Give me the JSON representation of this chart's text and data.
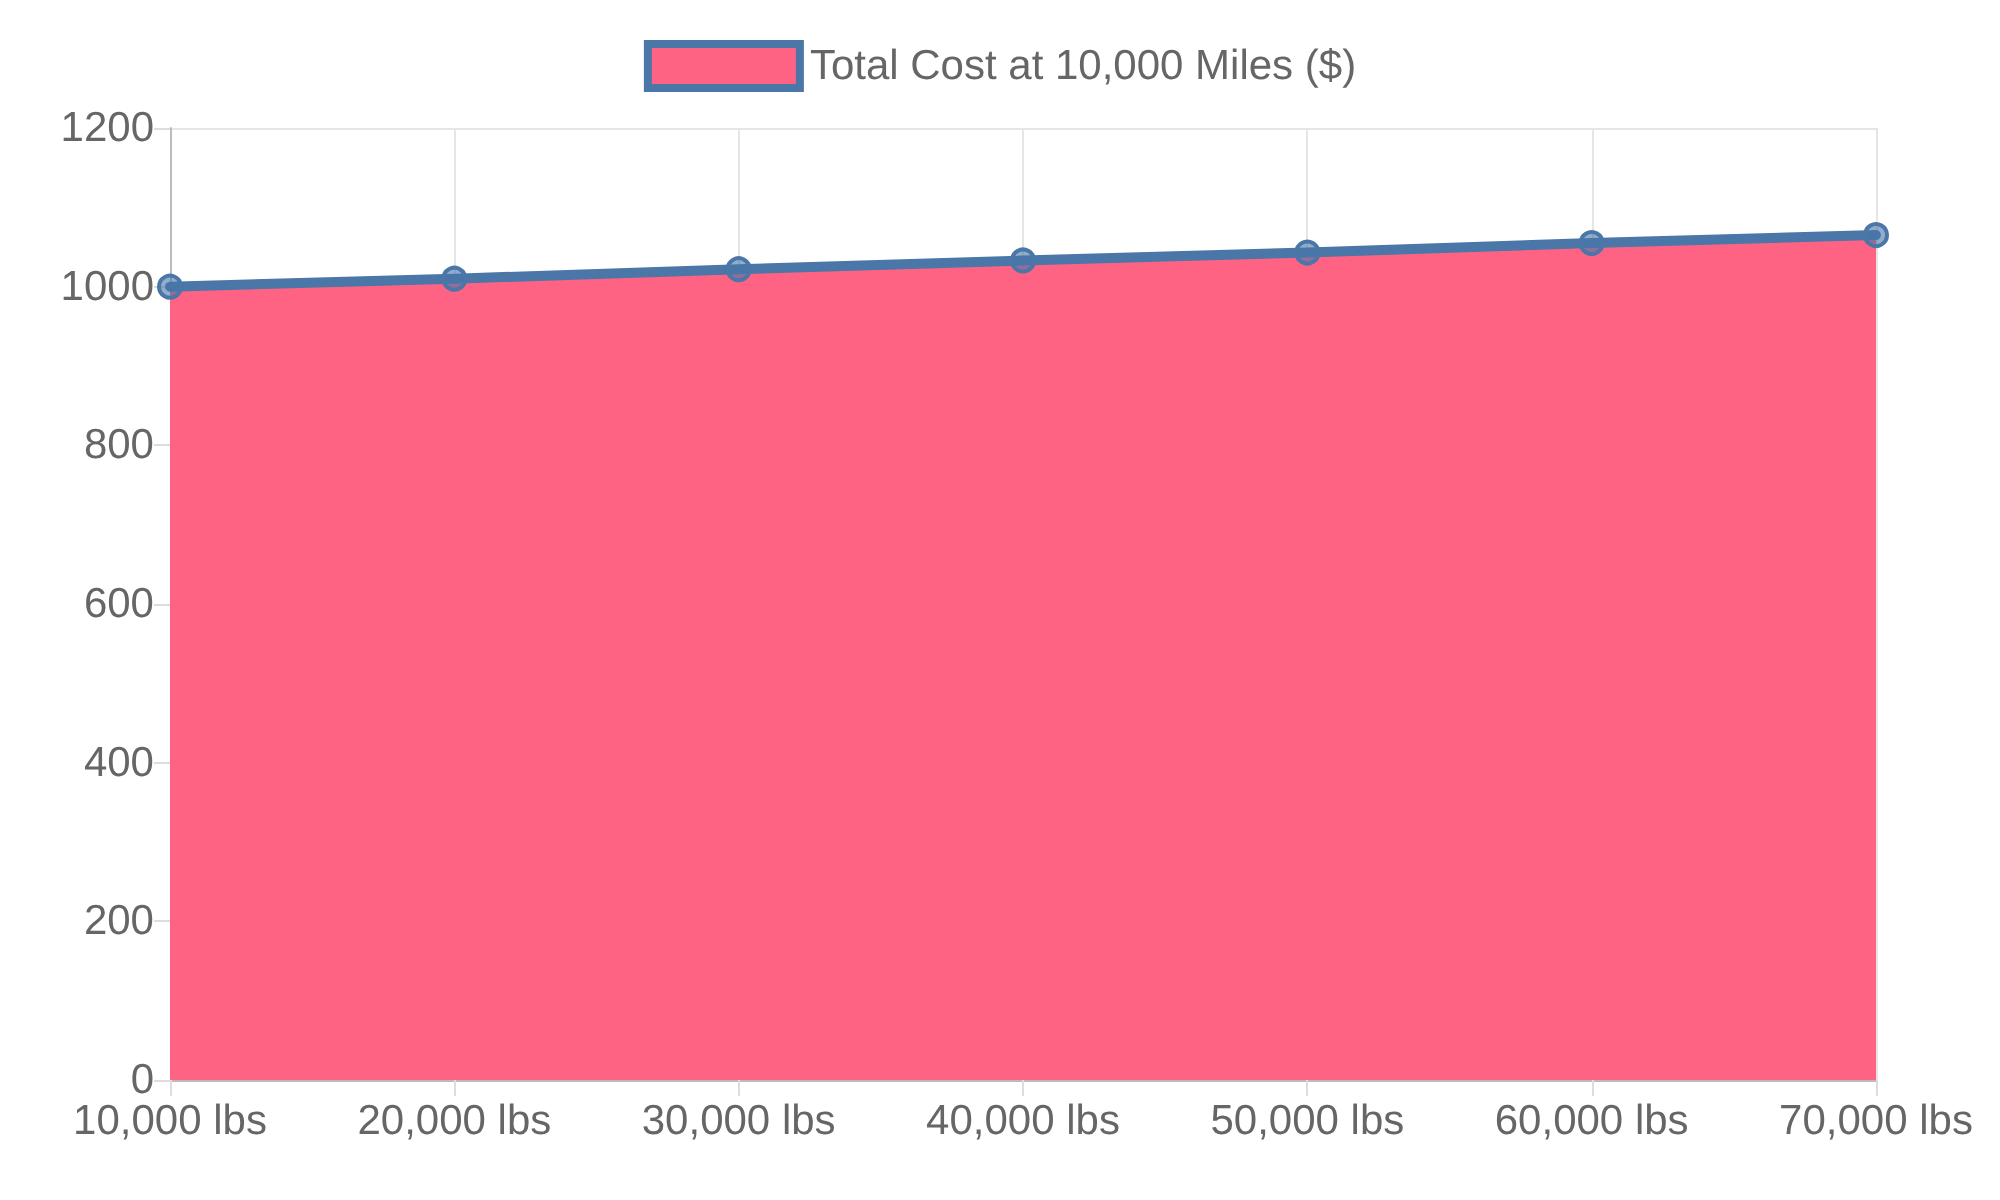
{
  "chart_data": {
    "type": "area",
    "categories": [
      "10,000 lbs",
      "20,000 lbs",
      "30,000 lbs",
      "40,000 lbs",
      "50,000 lbs",
      "60,000 lbs",
      "70,000 lbs"
    ],
    "series": [
      {
        "name": "Total Cost at 10,000 Miles ($)",
        "color": "#4a76a8",
        "colors": [
          "#ff6384",
          "#ff6384",
          "#ff6384",
          "#ff6384",
          "#ff6384",
          "#ff6384",
          "#ff6384"
        ],
        "values": [
          1000,
          1010,
          1022,
          1033,
          1043,
          1055,
          1065
        ]
      }
    ],
    "ylim": [
      0,
      1200
    ],
    "yticks": [
      0,
      200,
      400,
      600,
      800,
      1000,
      1200
    ],
    "grid": true,
    "legend": "top",
    "marker": "circle",
    "line_style": "solid"
  }
}
